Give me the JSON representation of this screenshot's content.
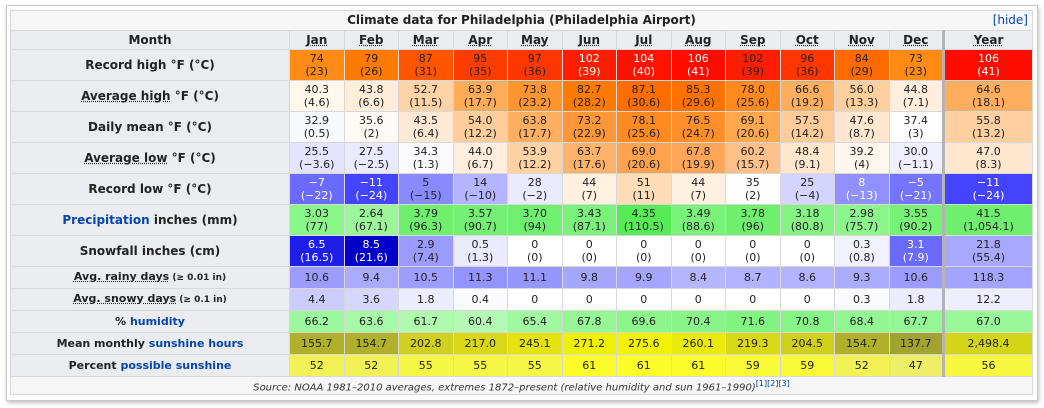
{
  "title": "Climate data for Philadelphia (Philadelphia Airport)",
  "hide": "[hide]",
  "header": {
    "label": "Month",
    "months": [
      "Jan",
      "Feb",
      "Mar",
      "Apr",
      "May",
      "Jun",
      "Jul",
      "Aug",
      "Sep",
      "Oct",
      "Nov",
      "Dec",
      "Year"
    ]
  },
  "rows": [
    {
      "label": [
        "Record high °F (°C)"
      ],
      "cells": [
        [
          "74",
          "(23)"
        ],
        [
          "79",
          "(26)"
        ],
        [
          "87",
          "(31)"
        ],
        [
          "95",
          "(35)"
        ],
        [
          "97",
          "(36)"
        ],
        [
          "102",
          "(39)"
        ],
        [
          "104",
          "(40)"
        ],
        [
          "106",
          "(41)"
        ],
        [
          "102",
          "(39)"
        ],
        [
          "96",
          "(36)"
        ],
        [
          "84",
          "(29)"
        ],
        [
          "73",
          "(23)"
        ],
        [
          "106",
          "(41)"
        ]
      ]
    },
    {
      "label": [
        "Average high",
        " °F (°C)"
      ],
      "cells": [
        [
          "40.3",
          "(4.6)"
        ],
        [
          "43.8",
          "(6.6)"
        ],
        [
          "52.7",
          "(11.5)"
        ],
        [
          "63.9",
          "(17.7)"
        ],
        [
          "73.8",
          "(23.2)"
        ],
        [
          "82.7",
          "(28.2)"
        ],
        [
          "87.1",
          "(30.6)"
        ],
        [
          "85.3",
          "(29.6)"
        ],
        [
          "78.0",
          "(25.6)"
        ],
        [
          "66.6",
          "(19.2)"
        ],
        [
          "56.0",
          "(13.3)"
        ],
        [
          "44.8",
          "(7.1)"
        ],
        [
          "64.6",
          "(18.1)"
        ]
      ]
    },
    {
      "label": [
        "Daily mean °F (°C)"
      ],
      "cells": [
        [
          "32.9",
          "(0.5)"
        ],
        [
          "35.6",
          "(2)"
        ],
        [
          "43.5",
          "(6.4)"
        ],
        [
          "54.0",
          "(12.2)"
        ],
        [
          "63.8",
          "(17.7)"
        ],
        [
          "73.2",
          "(22.9)"
        ],
        [
          "78.1",
          "(25.6)"
        ],
        [
          "76.5",
          "(24.7)"
        ],
        [
          "69.1",
          "(20.6)"
        ],
        [
          "57.5",
          "(14.2)"
        ],
        [
          "47.6",
          "(8.7)"
        ],
        [
          "37.4",
          "(3)"
        ],
        [
          "55.8",
          "(13.2)"
        ]
      ]
    },
    {
      "label": [
        "Average low",
        " °F (°C)"
      ],
      "cells": [
        [
          "25.5",
          "(−3.6)"
        ],
        [
          "27.5",
          "(−2.5)"
        ],
        [
          "34.3",
          "(1.3)"
        ],
        [
          "44.0",
          "(6.7)"
        ],
        [
          "53.9",
          "(12.2)"
        ],
        [
          "63.7",
          "(17.6)"
        ],
        [
          "69.0",
          "(20.6)"
        ],
        [
          "67.8",
          "(19.9)"
        ],
        [
          "60.2",
          "(15.7)"
        ],
        [
          "48.4",
          "(9.1)"
        ],
        [
          "39.2",
          "(4)"
        ],
        [
          "30.0",
          "(−1.1)"
        ],
        [
          "47.0",
          "(8.3)"
        ]
      ]
    },
    {
      "label": [
        "Record low °F (°C)"
      ],
      "cells": [
        [
          "−7",
          "(−22)"
        ],
        [
          "−11",
          "(−24)"
        ],
        [
          "5",
          "(−15)"
        ],
        [
          "14",
          "(−10)"
        ],
        [
          "28",
          "(−2)"
        ],
        [
          "44",
          "(7)"
        ],
        [
          "51",
          "(11)"
        ],
        [
          "44",
          "(7)"
        ],
        [
          "35",
          "(2)"
        ],
        [
          "25",
          "(−4)"
        ],
        [
          "8",
          "(−13)"
        ],
        [
          "−5",
          "(−21)"
        ],
        [
          "−11",
          "(−24)"
        ]
      ]
    },
    {
      "label": [
        "Precipitation",
        " inches (mm)"
      ],
      "cells": [
        [
          "3.03",
          "(77)"
        ],
        [
          "2.64",
          "(67.1)"
        ],
        [
          "3.79",
          "(96.3)"
        ],
        [
          "3.57",
          "(90.7)"
        ],
        [
          "3.70",
          "(94)"
        ],
        [
          "3.43",
          "(87.1)"
        ],
        [
          "4.35",
          "(110.5)"
        ],
        [
          "3.49",
          "(88.6)"
        ],
        [
          "3.78",
          "(96)"
        ],
        [
          "3.18",
          "(80.8)"
        ],
        [
          "2.98",
          "(75.7)"
        ],
        [
          "3.55",
          "(90.2)"
        ],
        [
          "41.5",
          "(1,054.1)"
        ]
      ]
    },
    {
      "label": [
        "Snowfall inches (cm)"
      ],
      "cells": [
        [
          "6.5",
          "(16.5)"
        ],
        [
          "8.5",
          "(21.6)"
        ],
        [
          "2.9",
          "(7.4)"
        ],
        [
          "0.5",
          "(1.3)"
        ],
        [
          "0",
          "(0)"
        ],
        [
          "0",
          "(0)"
        ],
        [
          "0",
          "(0)"
        ],
        [
          "0",
          "(0)"
        ],
        [
          "0",
          "(0)"
        ],
        [
          "0",
          "(0)"
        ],
        [
          "0.3",
          "(0.8)"
        ],
        [
          "3.1",
          "(7.9)"
        ],
        [
          "21.8",
          "(55.4)"
        ]
      ]
    },
    {
      "label": [
        "Avg. rainy days",
        " (≥ 0.01 in)"
      ],
      "cells": [
        [
          "10.6"
        ],
        [
          "9.4"
        ],
        [
          "10.5"
        ],
        [
          "11.3"
        ],
        [
          "11.1"
        ],
        [
          "9.8"
        ],
        [
          "9.9"
        ],
        [
          "8.4"
        ],
        [
          "8.7"
        ],
        [
          "8.6"
        ],
        [
          "9.3"
        ],
        [
          "10.6"
        ],
        [
          "118.3"
        ]
      ]
    },
    {
      "label": [
        "Avg. snowy days",
        " (≥ 0.1 in)"
      ],
      "cells": [
        [
          "4.4"
        ],
        [
          "3.6"
        ],
        [
          "1.8"
        ],
        [
          "0.4"
        ],
        [
          "0"
        ],
        [
          "0"
        ],
        [
          "0"
        ],
        [
          "0"
        ],
        [
          "0"
        ],
        [
          "0"
        ],
        [
          "0.3"
        ],
        [
          "1.8"
        ],
        [
          "12.2"
        ]
      ]
    },
    {
      "label": [
        "% ",
        "humidity"
      ],
      "cells": [
        [
          "66.2"
        ],
        [
          "63.6"
        ],
        [
          "61.7"
        ],
        [
          "60.4"
        ],
        [
          "65.4"
        ],
        [
          "67.8"
        ],
        [
          "69.6"
        ],
        [
          "70.4"
        ],
        [
          "71.6"
        ],
        [
          "70.8"
        ],
        [
          "68.4"
        ],
        [
          "67.7"
        ],
        [
          "67.0"
        ]
      ]
    },
    {
      "label": [
        "Mean monthly ",
        "sunshine hours"
      ],
      "cells": [
        [
          "155.7"
        ],
        [
          "154.7"
        ],
        [
          "202.8"
        ],
        [
          "217.0"
        ],
        [
          "245.1"
        ],
        [
          "271.2"
        ],
        [
          "275.6"
        ],
        [
          "260.1"
        ],
        [
          "219.3"
        ],
        [
          "204.5"
        ],
        [
          "154.7"
        ],
        [
          "137.7"
        ],
        [
          "2,498.4"
        ]
      ]
    },
    {
      "label": [
        "Percent ",
        "possible sunshine"
      ],
      "cells": [
        [
          "52"
        ],
        [
          "52"
        ],
        [
          "55"
        ],
        [
          "55"
        ],
        [
          "55"
        ],
        [
          "61"
        ],
        [
          "61"
        ],
        [
          "61"
        ],
        [
          "59"
        ],
        [
          "59"
        ],
        [
          "52"
        ],
        [
          "47"
        ],
        [
          "56"
        ]
      ]
    }
  ],
  "source": "Source: NOAA 1981–2010 averages, extremes 1872–present (relative humidity and sun 1961–1990)",
  "refs": [
    "[1]",
    "[2]",
    "[3]"
  ]
}
